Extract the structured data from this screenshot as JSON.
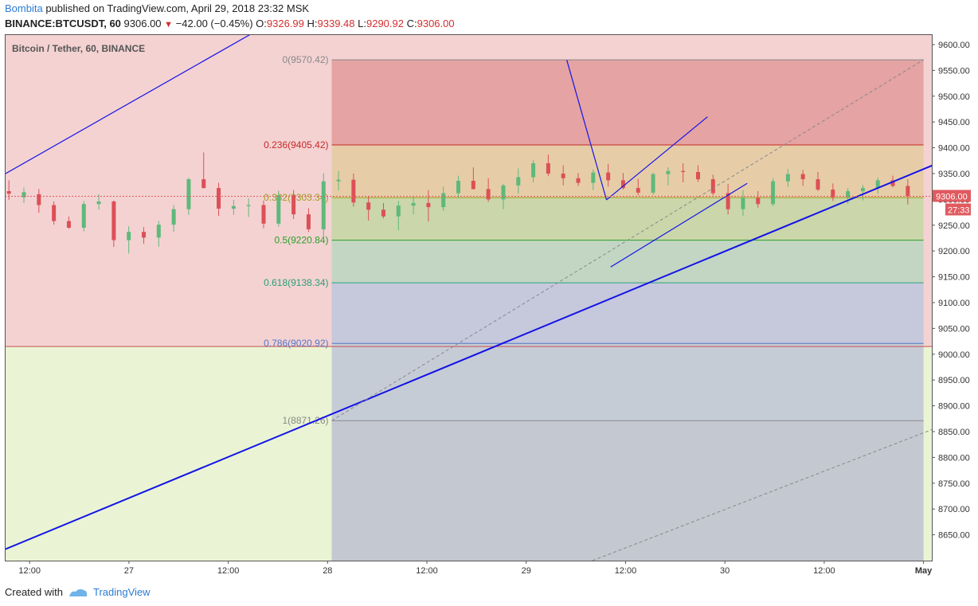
{
  "header": {
    "author": "Bombita",
    "published": " published on TradingView.com, April 29, 2018 23:32 MSK",
    "symbol": "BINANCE:BTCUSDT, 60",
    "last": "9306.00",
    "change": "−42.00 (−0.45%)",
    "o_label": "O:",
    "o_value": "9326.99",
    "h_label": "H:",
    "h_value": "9339.48",
    "l_label": "L:",
    "l_value": "9290.92",
    "c_label": "C:",
    "c_value": "9306.00"
  },
  "footer": {
    "created": "Created with",
    "brand": "TradingView"
  },
  "chart_data": {
    "type": "candlestick",
    "title": "Bitcoin / Tether, 60, BINANCE",
    "ylim": [
      8600,
      9620
    ],
    "y_ticks": [
      8650,
      8700,
      8750,
      8800,
      8850,
      8900,
      8950,
      9000,
      9050,
      9100,
      9150,
      9200,
      9250,
      9300,
      9350,
      9400,
      9450,
      9500,
      9550,
      9600
    ],
    "x_range_hours": [
      0,
      112
    ],
    "x_ticks": [
      {
        "h": 3,
        "label": "12:00"
      },
      {
        "h": 15,
        "label": "27"
      },
      {
        "h": 27,
        "label": "12:00"
      },
      {
        "h": 39,
        "label": "28"
      },
      {
        "h": 51,
        "label": "12:00"
      },
      {
        "h": 63,
        "label": "29"
      },
      {
        "h": 75,
        "label": "12:00"
      },
      {
        "h": 87,
        "label": "30"
      },
      {
        "h": 99,
        "label": "12:00"
      },
      {
        "h": 111,
        "label": "May"
      },
      {
        "h": 123,
        "label": "12:00"
      }
    ],
    "colors": {
      "up": "#5eb97b",
      "down": "#dc5057",
      "trendline": "#1414e6",
      "fib_line": "#999999"
    },
    "last_price": {
      "value": 9306,
      "label": "9306.00",
      "countdown": "27:33",
      "color": "#e05a5f"
    },
    "fibonacci": {
      "start_h": 39.5,
      "end_h": 111,
      "levels": [
        {
          "ratio": "0",
          "price": 9570.42,
          "label": "0(9570.42)",
          "color": "#888888",
          "fill": "#e5a3a3"
        },
        {
          "ratio": "0.236",
          "price": 9405.42,
          "label": "0.236(9405.42)",
          "color": "#c82828",
          "fill": "#e6cda8"
        },
        {
          "ratio": "0.382",
          "price": 9303.34,
          "label": "0.382(9303.34)",
          "color": "#a0a020",
          "fill": "#cbd6aa"
        },
        {
          "ratio": "0.5",
          "price": 9220.84,
          "label": "0.5(9220.84)",
          "color": "#28a028",
          "fill": "#c3d6c3"
        },
        {
          "ratio": "0.618",
          "price": 9138.34,
          "label": "0.618(9138.34)",
          "color": "#28a078",
          "fill": "#c6c8dc"
        },
        {
          "ratio": "0.786",
          "price": 9020.92,
          "label": "0.786(9020.92)",
          "color": "#5078c8",
          "fill": "#c6ccd6"
        },
        {
          "ratio": "1",
          "price": 8871.26,
          "label": "1(8871.26)",
          "color": "#888888",
          "fill": "#c4c8d0"
        }
      ]
    },
    "background_zones": [
      {
        "from": 9015,
        "to": 9620,
        "color": "#f4d2d2"
      },
      {
        "from": 8600,
        "to": 9015,
        "color": "#eaf4d4"
      }
    ],
    "horizontal_lines": [
      {
        "price": 9015,
        "color": "#c85050"
      }
    ],
    "trendlines": [
      {
        "from": [
          -1,
          8615
        ],
        "to": [
          113,
          9372
        ],
        "color": "#1414e6",
        "width": 2
      },
      {
        "from": [
          -1,
          9340
        ],
        "to": [
          29.7,
          9620
        ],
        "color": "#1414e6",
        "width": 1.2
      },
      {
        "from": [
          67.9,
          9570
        ],
        "to": [
          72.7,
          9299
        ],
        "color": "#1414e6",
        "width": 1.2
      },
      {
        "from": [
          72.7,
          9299
        ],
        "to": [
          84.9,
          9460
        ],
        "color": "#1414e6",
        "width": 1.2
      },
      {
        "from": [
          73.2,
          9169
        ],
        "to": [
          89.7,
          9331
        ],
        "color": "#1414e6",
        "width": 1.2
      },
      {
        "from": [
          71,
          8600
        ],
        "to": [
          113,
          8860
        ],
        "color": "#888888",
        "width": 1,
        "dashed": true
      },
      {
        "from": [
          39.5,
          8871.26
        ],
        "to": [
          111,
          9570.42
        ],
        "color": "#888888",
        "width": 1,
        "dashed": true
      }
    ],
    "candles": [
      [
        9316,
        9337,
        9299,
        9311
      ],
      [
        9304,
        9323,
        9293,
        9314
      ],
      [
        9310,
        9320,
        9274,
        9289
      ],
      [
        9289,
        9296,
        9251,
        9258
      ],
      [
        9258,
        9267,
        9243,
        9245
      ],
      [
        9245,
        9297,
        9238,
        9291
      ],
      [
        9291,
        9310,
        9280,
        9296
      ],
      [
        9296,
        9298,
        9208,
        9221
      ],
      [
        9221,
        9248,
        9195,
        9237
      ],
      [
        9237,
        9246,
        9214,
        9226
      ],
      [
        9226,
        9258,
        9208,
        9251
      ],
      [
        9251,
        9289,
        9237,
        9281
      ],
      [
        9281,
        9342,
        9270,
        9339
      ],
      [
        9339,
        9391,
        9321,
        9322
      ],
      [
        9322,
        9332,
        9268,
        9282
      ],
      [
        9282,
        9299,
        9270,
        9287
      ],
      [
        9287,
        9302,
        9266,
        9289
      ],
      [
        9289,
        9298,
        9244,
        9253
      ],
      [
        9253,
        9317,
        9247,
        9308
      ],
      [
        9308,
        9318,
        9262,
        9271
      ],
      [
        9271,
        9283,
        9237,
        9242
      ],
      [
        9242,
        9351,
        9224,
        9335
      ],
      [
        9335,
        9355,
        9317,
        9338
      ],
      [
        9338,
        9350,
        9286,
        9294
      ],
      [
        9294,
        9306,
        9259,
        9280
      ],
      [
        9280,
        9293,
        9263,
        9267
      ],
      [
        9267,
        9297,
        9240,
        9288
      ],
      [
        9288,
        9306,
        9271,
        9293
      ],
      [
        9293,
        9318,
        9257,
        9285
      ],
      [
        9285,
        9325,
        9278,
        9312
      ],
      [
        9312,
        9346,
        9303,
        9336
      ],
      [
        9336,
        9362,
        9319,
        9320
      ],
      [
        9320,
        9341,
        9295,
        9300
      ],
      [
        9300,
        9330,
        9281,
        9327
      ],
      [
        9327,
        9360,
        9311,
        9343
      ],
      [
        9343,
        9376,
        9333,
        9370
      ],
      [
        9370,
        9387,
        9345,
        9350
      ],
      [
        9350,
        9366,
        9327,
        9341
      ],
      [
        9341,
        9351,
        9326,
        9332
      ],
      [
        9332,
        9358,
        9318,
        9352
      ],
      [
        9352,
        9369,
        9325,
        9337
      ],
      [
        9337,
        9351,
        9319,
        9322
      ],
      [
        9322,
        9340,
        9308,
        9313
      ],
      [
        9313,
        9352,
        9309,
        9349
      ],
      [
        9349,
        9362,
        9327,
        9355
      ],
      [
        9355,
        9370,
        9333,
        9353
      ],
      [
        9353,
        9366,
        9334,
        9339
      ],
      [
        9339,
        9348,
        9308,
        9312
      ],
      [
        9312,
        9330,
        9271,
        9281
      ],
      [
        9281,
        9318,
        9268,
        9303
      ],
      [
        9303,
        9316,
        9284,
        9291
      ],
      [
        9291,
        9341,
        9287,
        9335
      ],
      [
        9335,
        9359,
        9324,
        9349
      ],
      [
        9349,
        9357,
        9326,
        9339
      ],
      [
        9339,
        9353,
        9316,
        9319
      ],
      [
        9319,
        9331,
        9297,
        9304
      ],
      [
        9304,
        9322,
        9291,
        9316
      ],
      [
        9316,
        9328,
        9298,
        9322
      ],
      [
        9322,
        9342,
        9311,
        9337
      ],
      [
        9337,
        9346,
        9323,
        9326
      ],
      [
        9326,
        9339,
        9290,
        9306
      ]
    ]
  }
}
